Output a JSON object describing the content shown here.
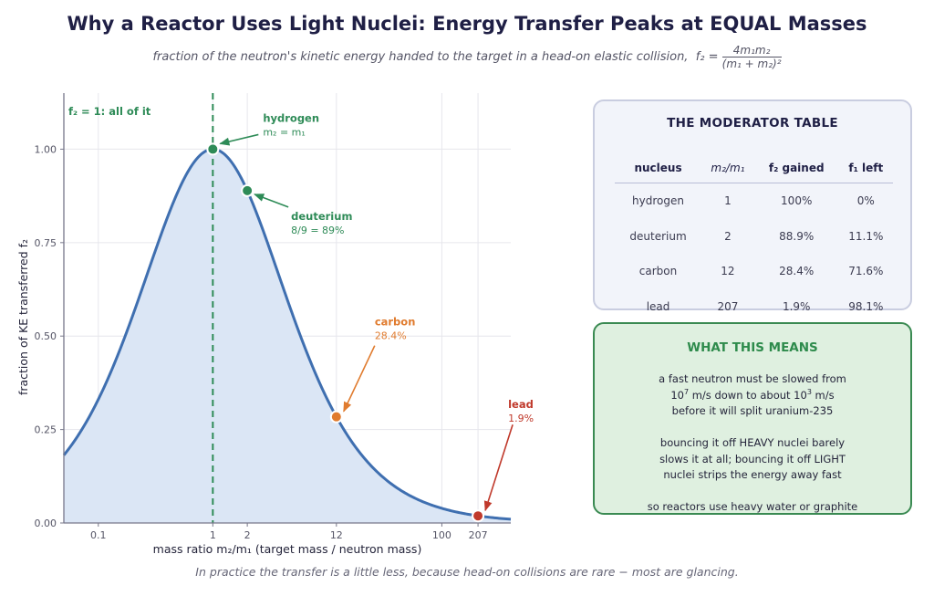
{
  "title": "Why a Reactor Uses Light Nuclei:  Energy Transfer Peaks at EQUAL Masses",
  "subtitle": {
    "text": "fraction of the neutron's kinetic energy handed to the target in a head-on elastic collision,",
    "formula_lhs": "f₂ =",
    "formula_num": "4m₁m₂",
    "formula_den": "(m₁ + m₂)²"
  },
  "footnote": "In practice the transfer is a little less, because head-on collisions are rare − most are glancing.",
  "chart_data": {
    "type": "area",
    "function": "f2 = 4r/(1+r)^2",
    "xscale": "log",
    "xlim": [
      0.05,
      400
    ],
    "ylim": [
      0,
      1.15
    ],
    "xlabel": "mass ratio   m₂/m₁   (target mass / neutron mass)",
    "ylabel": "fraction of KE transferred   f₂",
    "xticks": [
      {
        "value": 0.1,
        "label": "0.1"
      },
      {
        "value": 1,
        "label": "1"
      },
      {
        "value": 2,
        "label": "2"
      },
      {
        "value": 12,
        "label": "12"
      },
      {
        "value": 100,
        "label": "100"
      },
      {
        "value": 207,
        "label": "207"
      }
    ],
    "yticks": [
      {
        "value": 0,
        "label": "0.00"
      },
      {
        "value": 0.25,
        "label": "0.25"
      },
      {
        "value": 0.5,
        "label": "0.50"
      },
      {
        "value": 0.75,
        "label": "0.75"
      },
      {
        "value": 1,
        "label": "1.00"
      }
    ],
    "grid": true,
    "line_color": "#3f6fb0",
    "fill_color": "#dbe6f5",
    "reference_line": {
      "x": 1,
      "label": "f₂ = 1: all of it",
      "color": "#2e8b57"
    },
    "points": [
      {
        "name": "hydrogen",
        "x": 1,
        "y": 1.0,
        "line1": "hydrogen",
        "line2": "m₂ = m₁",
        "color": "#2e8b57"
      },
      {
        "name": "deuterium",
        "x": 2,
        "y": 0.889,
        "line1": "deuterium",
        "line2": "8/9 = 89%",
        "color": "#2e8b57"
      },
      {
        "name": "carbon",
        "x": 12,
        "y": 0.284,
        "line1": "carbon",
        "line2": "28.4%",
        "color": "#e07b2e"
      },
      {
        "name": "lead",
        "x": 207,
        "y": 0.019,
        "line1": "lead",
        "line2": "1.9%",
        "color": "#c0392b"
      }
    ]
  },
  "moderator_table": {
    "title": "THE MODERATOR TABLE",
    "headers": [
      "nucleus",
      "m₂/m₁",
      "f₂ gained",
      "f₁ left"
    ],
    "rows": [
      [
        "hydrogen",
        "1",
        "100%",
        "0%"
      ],
      [
        "deuterium",
        "2",
        "88.9%",
        "11.1%"
      ],
      [
        "carbon",
        "12",
        "28.4%",
        "71.6%"
      ],
      [
        "lead",
        "207",
        "1.9%",
        "98.1%"
      ]
    ]
  },
  "what_this_means": {
    "title": "WHAT THIS MEANS",
    "p1_line1": "a fast neutron must be slowed from",
    "p1_line2_a": "10",
    "p1_line2_exp1": "7",
    "p1_line2_b": " m/s down to about 10",
    "p1_line2_exp2": "3",
    "p1_line2_c": " m/s",
    "p1_line3": "before it will split uranium-235",
    "p2_line1": "bouncing it off HEAVY nuclei barely",
    "p2_line2": "slows it at all; bouncing it off LIGHT",
    "p2_line3": "nuclei strips the energy away fast",
    "p3_line1": "so reactors use heavy water or graphite"
  }
}
